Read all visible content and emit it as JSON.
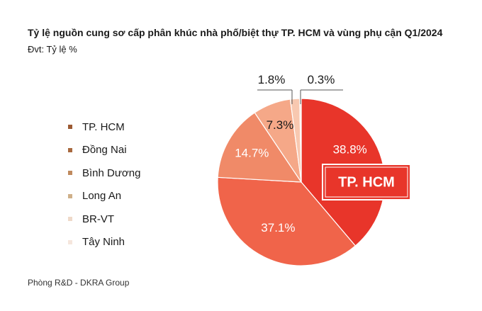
{
  "chart_data": {
    "type": "pie",
    "title": "Tỷ lệ nguồn cung sơ cấp phân khúc nhà phố/biệt thự TP. HCM và vùng phụ cận Q1/2024",
    "subtitle": "Đvt: Tỷ lệ %",
    "unit": "%",
    "categories": [
      "TP. HCM",
      "Đồng Nai",
      "Bình Dương",
      "Long An",
      "BR-VT",
      "Tây Ninh"
    ],
    "values": [
      38.8,
      37.1,
      14.7,
      7.3,
      1.8,
      0.3
    ],
    "value_labels": [
      "38.8%",
      "37.1%",
      "14.7%",
      "7.3%",
      "1.8%",
      "0.3%"
    ],
    "colors": [
      "#e8352a",
      "#f0644a",
      "#f08a68",
      "#f5a888",
      "#f8c8b0",
      "#fbe3d4"
    ],
    "legend_colors": [
      "#9c5a33",
      "#a8693f",
      "#c08a5e",
      "#cfb089",
      "#efd9c9",
      "#f5e6dd"
    ],
    "legend_position": "left",
    "highlight_label": "TP. HCM",
    "highlight_color": "#e8352a"
  },
  "source": "Phòng R&D - DKRA Group"
}
